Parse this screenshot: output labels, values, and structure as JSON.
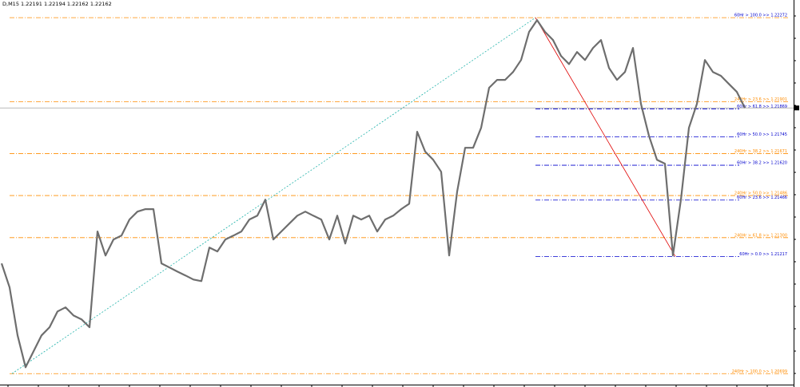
{
  "chart_data": {
    "type": "line",
    "title": "D,M15  1.22191 1.22194 1.22162 1.22162",
    "color": "#6e6e6e",
    "ylim": [
      1.2064,
      1.2235
    ],
    "values": [
      1.21186,
      1.2108,
      1.20868,
      1.20727,
      1.20798,
      1.20868,
      1.20904,
      1.20974,
      1.20992,
      1.20956,
      1.20939,
      1.20904,
      1.21327,
      1.21221,
      1.21292,
      1.21309,
      1.2138,
      1.21415,
      1.21426,
      1.21426,
      1.21186,
      1.21168,
      1.2115,
      1.21133,
      1.21115,
      1.21108,
      1.21256,
      1.21239,
      1.21292,
      1.21309,
      1.21327,
      1.2138,
      1.21397,
      1.21468,
      1.21292,
      1.21327,
      1.21362,
      1.21397,
      1.21415,
      1.21397,
      1.2138,
      1.21292,
      1.21397,
      1.21274,
      1.21397,
      1.2138,
      1.21397,
      1.21327,
      1.2138,
      1.21397,
      1.21426,
      1.2145,
      1.21768,
      1.2168,
      1.21644,
      1.21591,
      1.21221,
      1.21503,
      1.21697,
      1.21697,
      1.21785,
      1.21962,
      1.21997,
      1.21997,
      1.22032,
      1.22085,
      1.22209,
      1.22261,
      1.22209,
      1.22173,
      1.22103,
      1.22067,
      1.2212,
      1.22085,
      1.22138,
      1.22173,
      1.2205,
      1.21997,
      1.22032,
      1.22138,
      1.21891,
      1.2175,
      1.21644,
      1.21627,
      1.21221,
      1.21468,
      1.21785,
      1.21891,
      1.22085,
      1.22032,
      1.22015,
      1.21979,
      1.21944,
      1.21873
    ],
    "fib_60": {
      "color": "#0000cd",
      "levels": [
        {
          "value": 1.22272,
          "label": "60Hr > 100.0 >> 1.22272"
        },
        {
          "value": 1.21869,
          "label": "60Hr > 61.8 >> 1.21869"
        },
        {
          "value": 1.21745,
          "label": "60Hr > 50.0 >> 1.21745"
        },
        {
          "value": 1.2162,
          "label": "60Hr > 38.2 >> 1.21620"
        },
        {
          "value": 1.21466,
          "label": "60Hr > 23.6 >> 1.21466"
        },
        {
          "value": 1.21217,
          "label": "60Hr > 0.0 >> 1.21217"
        }
      ]
    },
    "fib_240": {
      "color": "#ff8c00",
      "levels": [
        {
          "value": 1.21901,
          "label": "240Hr > 23.6 >> 1.21901"
        },
        {
          "value": 1.21671,
          "label": "240Hr > 38.2 >> 1.21671"
        },
        {
          "value": 1.21486,
          "label": "240Hr > 50.0 >> 1.21486"
        },
        {
          "value": 1.213,
          "label": "240Hr > 61.8 >> 1.21300"
        },
        {
          "value": 1.20699,
          "label": "240Hr > 100.0 >> 1.20699"
        }
      ]
    }
  }
}
